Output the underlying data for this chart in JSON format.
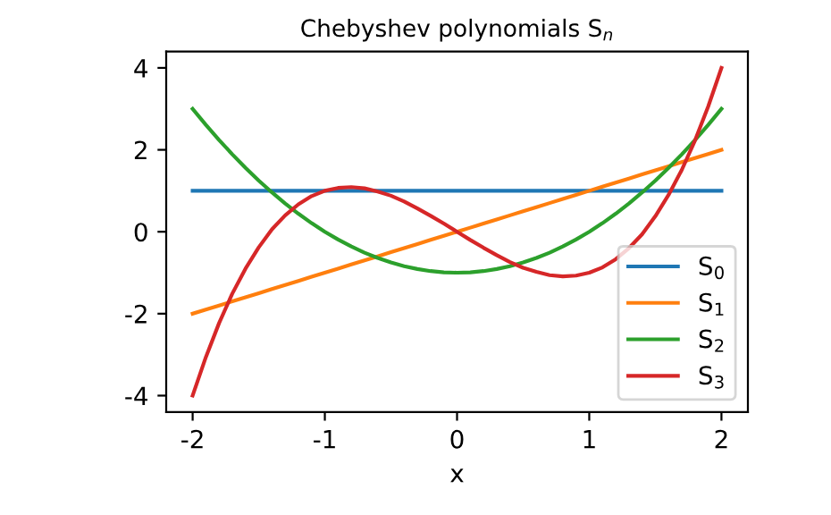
{
  "chart_data": {
    "type": "line",
    "title": "Chebyshev polynomials S$_{n}$",
    "xlabel": "x",
    "x": [
      -2,
      -1.9,
      -1.8,
      -1.7,
      -1.6,
      -1.5,
      -1.4,
      -1.3,
      -1.2,
      -1.1,
      -1,
      -0.9,
      -0.8,
      -0.7,
      -0.6,
      -0.5,
      -0.4,
      -0.3,
      -0.2,
      -0.1,
      0,
      0.1,
      0.2,
      0.3,
      0.4,
      0.5,
      0.6,
      0.7,
      0.8,
      0.9,
      1,
      1.1,
      1.2,
      1.3,
      1.4,
      1.5,
      1.6,
      1.7,
      1.8,
      1.9,
      2
    ],
    "series": [
      {
        "name": "S$_{0}$",
        "color": "#1f77b4",
        "values": [
          1,
          1,
          1,
          1,
          1,
          1,
          1,
          1,
          1,
          1,
          1,
          1,
          1,
          1,
          1,
          1,
          1,
          1,
          1,
          1,
          1,
          1,
          1,
          1,
          1,
          1,
          1,
          1,
          1,
          1,
          1,
          1,
          1,
          1,
          1,
          1,
          1,
          1,
          1,
          1,
          1
        ]
      },
      {
        "name": "S$_{1}$",
        "color": "#ff7f0e",
        "values": [
          -2,
          -1.9,
          -1.8,
          -1.7,
          -1.6,
          -1.5,
          -1.4,
          -1.3,
          -1.2,
          -1.1,
          -1,
          -0.9,
          -0.8,
          -0.7,
          -0.6,
          -0.5,
          -0.4,
          -0.3,
          -0.2,
          -0.1,
          0,
          0.1,
          0.2,
          0.3,
          0.4,
          0.5,
          0.6,
          0.7,
          0.8,
          0.9,
          1,
          1.1,
          1.2,
          1.3,
          1.4,
          1.5,
          1.6,
          1.7,
          1.8,
          1.9,
          2
        ]
      },
      {
        "name": "S$_{2}$",
        "color": "#2ca02c",
        "values": [
          3,
          2.61,
          2.24,
          1.89,
          1.56,
          1.25,
          0.96,
          0.69,
          0.44,
          0.21,
          0,
          -0.19,
          -0.36,
          -0.51,
          -0.64,
          -0.75,
          -0.84,
          -0.91,
          -0.96,
          -0.99,
          -1,
          -0.99,
          -0.96,
          -0.91,
          -0.84,
          -0.75,
          -0.64,
          -0.51,
          -0.36,
          -0.19,
          0,
          0.21,
          0.44,
          0.69,
          0.96,
          1.25,
          1.56,
          1.89,
          2.24,
          2.61,
          3
        ]
      },
      {
        "name": "S$_{3}$",
        "color": "#d62728",
        "values": [
          -4,
          -3.06,
          -2.23,
          -1.51,
          -0.9,
          -0.38,
          0.06,
          0.4,
          0.67,
          0.87,
          1,
          1.07,
          1.09,
          1.06,
          0.98,
          0.88,
          0.74,
          0.57,
          0.39,
          0.2,
          0,
          -0.2,
          -0.39,
          -0.57,
          -0.74,
          -0.88,
          -0.98,
          -1.06,
          -1.09,
          -1.07,
          -1,
          -0.87,
          -0.67,
          -0.4,
          -0.06,
          0.38,
          0.9,
          1.51,
          2.23,
          3.06,
          4
        ]
      }
    ],
    "xlim": [
      -2.2,
      2.2
    ],
    "xticks": [
      -2,
      -1,
      0,
      1,
      2
    ],
    "ylim": [
      -4.4,
      4.4
    ],
    "yticks": [
      -4,
      -2,
      0,
      2,
      4
    ],
    "legend": "lower right",
    "grid": false,
    "marker": "none",
    "line_style": "solid"
  }
}
